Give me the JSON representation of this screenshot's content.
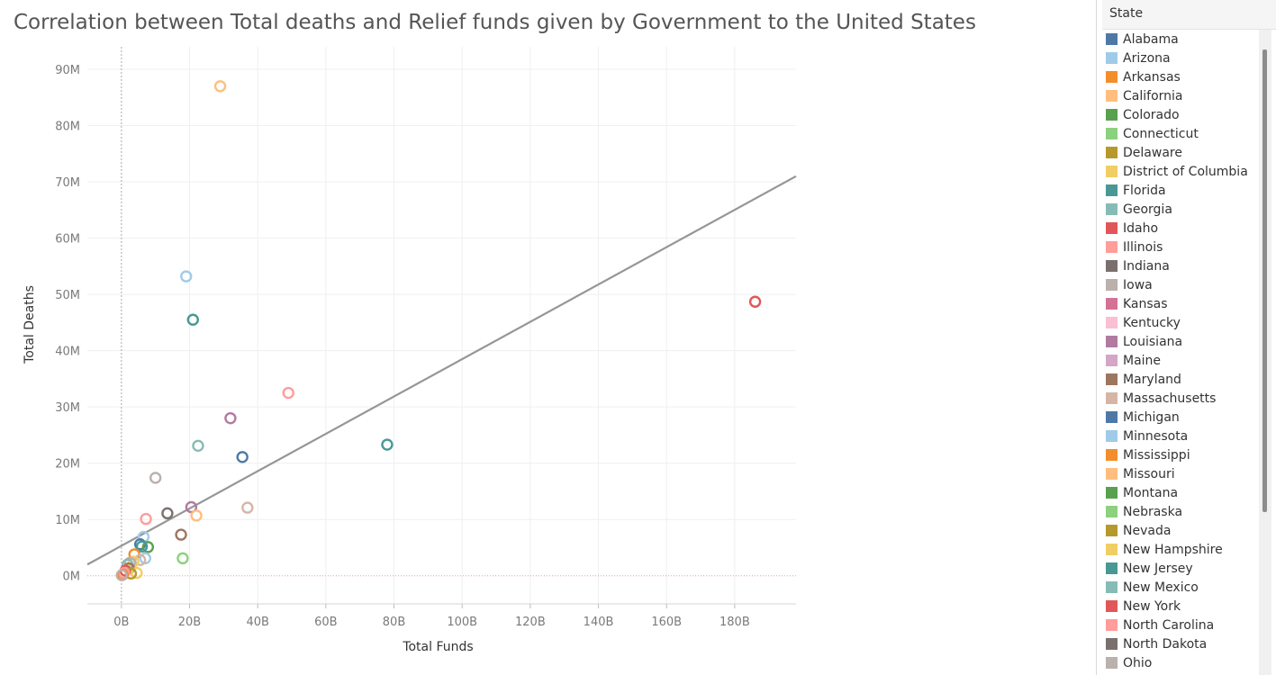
{
  "chart_data": {
    "type": "scatter",
    "title": "Correlation between Total deaths and Relief funds given by Government to the United States",
    "xlabel": "Total Funds",
    "ylabel": "Total Deaths",
    "xlim": [
      -10,
      198
    ],
    "ylim": [
      -5,
      94
    ],
    "x_unit": "B",
    "y_unit": "M",
    "x_ticks": [
      "0B",
      "20B",
      "40B",
      "60B",
      "80B",
      "100B",
      "120B",
      "140B",
      "160B",
      "180B"
    ],
    "x_tick_values": [
      0,
      20,
      40,
      60,
      80,
      100,
      120,
      140,
      160,
      180
    ],
    "y_ticks": [
      "0M",
      "10M",
      "20M",
      "30M",
      "40M",
      "50M",
      "60M",
      "70M",
      "80M",
      "90M"
    ],
    "y_tick_values": [
      0,
      10,
      20,
      30,
      40,
      50,
      60,
      70,
      80,
      90
    ],
    "grid": true,
    "trend_line": {
      "x": [
        -10,
        198
      ],
      "y": [
        2.0,
        71.0
      ]
    },
    "points": [
      {
        "x": 29,
        "y": 87,
        "color": "#ffbe7d"
      },
      {
        "x": 19,
        "y": 53.2,
        "color": "#a0cbe8"
      },
      {
        "x": 21,
        "y": 45.5,
        "color": "#499894"
      },
      {
        "x": 186,
        "y": 48.7,
        "color": "#e15759"
      },
      {
        "x": 49,
        "y": 32.5,
        "color": "#ff9d9a"
      },
      {
        "x": 32,
        "y": 28,
        "color": "#b07aa1"
      },
      {
        "x": 22.5,
        "y": 23.1,
        "color": "#86bcb6"
      },
      {
        "x": 78,
        "y": 23.3,
        "color": "#499894"
      },
      {
        "x": 35.5,
        "y": 21.1,
        "color": "#4e79a7"
      },
      {
        "x": 10,
        "y": 17.4,
        "color": "#bab0ac"
      },
      {
        "x": 20.5,
        "y": 12.2,
        "color": "#b07aa1"
      },
      {
        "x": 37,
        "y": 12.1,
        "color": "#d7b5a6"
      },
      {
        "x": 13.5,
        "y": 11.1,
        "color": "#79706e"
      },
      {
        "x": 22,
        "y": 10.7,
        "color": "#ffbe7d"
      },
      {
        "x": 7.2,
        "y": 10.1,
        "color": "#ff9d9a"
      },
      {
        "x": 17.5,
        "y": 7.3,
        "color": "#9d7660"
      },
      {
        "x": 6.5,
        "y": 6.9,
        "color": "#a0cbe8"
      },
      {
        "x": 5.5,
        "y": 5.6,
        "color": "#4e79a7"
      },
      {
        "x": 7.8,
        "y": 5.1,
        "color": "#59a14f"
      },
      {
        "x": 6,
        "y": 5.2,
        "color": "#499894"
      },
      {
        "x": 3.8,
        "y": 3.8,
        "color": "#f28e2b"
      },
      {
        "x": 18,
        "y": 3.1,
        "color": "#8cd17d"
      },
      {
        "x": 7,
        "y": 3.1,
        "color": "#a0cbe8"
      },
      {
        "x": 5.5,
        "y": 2.8,
        "color": "#d7b5a6"
      },
      {
        "x": 3.5,
        "y": 2.5,
        "color": "#f1ce63"
      },
      {
        "x": 2.5,
        "y": 2.3,
        "color": "#bab0ac"
      },
      {
        "x": 1.8,
        "y": 2.0,
        "color": "#86bcb6"
      },
      {
        "x": 2.2,
        "y": 1.3,
        "color": "#9d7660"
      },
      {
        "x": 1.2,
        "y": 0.9,
        "color": "#e15759"
      },
      {
        "x": 4.5,
        "y": 0.5,
        "color": "#f1ce63"
      },
      {
        "x": 2.8,
        "y": 0.4,
        "color": "#b6992d"
      },
      {
        "x": 0.8,
        "y": 0.5,
        "color": "#ff9d9a"
      },
      {
        "x": 0.4,
        "y": 0.2,
        "color": "#f28e2b"
      },
      {
        "x": 0.1,
        "y": 0.1,
        "color": "#bab0ac"
      }
    ]
  },
  "legend": {
    "title": "State",
    "items": [
      {
        "label": "Alabama",
        "color": "#4e79a7"
      },
      {
        "label": "Arizona",
        "color": "#a0cbe8"
      },
      {
        "label": "Arkansas",
        "color": "#f28e2b"
      },
      {
        "label": "California",
        "color": "#ffbe7d"
      },
      {
        "label": "Colorado",
        "color": "#59a14f"
      },
      {
        "label": "Connecticut",
        "color": "#8cd17d"
      },
      {
        "label": "Delaware",
        "color": "#b6992d"
      },
      {
        "label": "District of Columbia",
        "color": "#f1ce63"
      },
      {
        "label": "Florida",
        "color": "#499894"
      },
      {
        "label": "Georgia",
        "color": "#86bcb6"
      },
      {
        "label": "Idaho",
        "color": "#e15759"
      },
      {
        "label": "Illinois",
        "color": "#ff9d9a"
      },
      {
        "label": "Indiana",
        "color": "#79706e"
      },
      {
        "label": "Iowa",
        "color": "#bab0ac"
      },
      {
        "label": "Kansas",
        "color": "#d37295"
      },
      {
        "label": "Kentucky",
        "color": "#fabfd2"
      },
      {
        "label": "Louisiana",
        "color": "#b07aa1"
      },
      {
        "label": "Maine",
        "color": "#d4a6c8"
      },
      {
        "label": "Maryland",
        "color": "#9d7660"
      },
      {
        "label": "Massachusetts",
        "color": "#d7b5a6"
      },
      {
        "label": "Michigan",
        "color": "#4e79a7"
      },
      {
        "label": "Minnesota",
        "color": "#a0cbe8"
      },
      {
        "label": "Mississippi",
        "color": "#f28e2b"
      },
      {
        "label": "Missouri",
        "color": "#ffbe7d"
      },
      {
        "label": "Montana",
        "color": "#59a14f"
      },
      {
        "label": "Nebraska",
        "color": "#8cd17d"
      },
      {
        "label": "Nevada",
        "color": "#b6992d"
      },
      {
        "label": "New Hampshire",
        "color": "#f1ce63"
      },
      {
        "label": "New Jersey",
        "color": "#499894"
      },
      {
        "label": "New Mexico",
        "color": "#86bcb6"
      },
      {
        "label": "New York",
        "color": "#e15759"
      },
      {
        "label": "North Carolina",
        "color": "#ff9d9a"
      },
      {
        "label": "North Dakota",
        "color": "#79706e"
      },
      {
        "label": "Ohio",
        "color": "#bab0ac"
      }
    ]
  }
}
